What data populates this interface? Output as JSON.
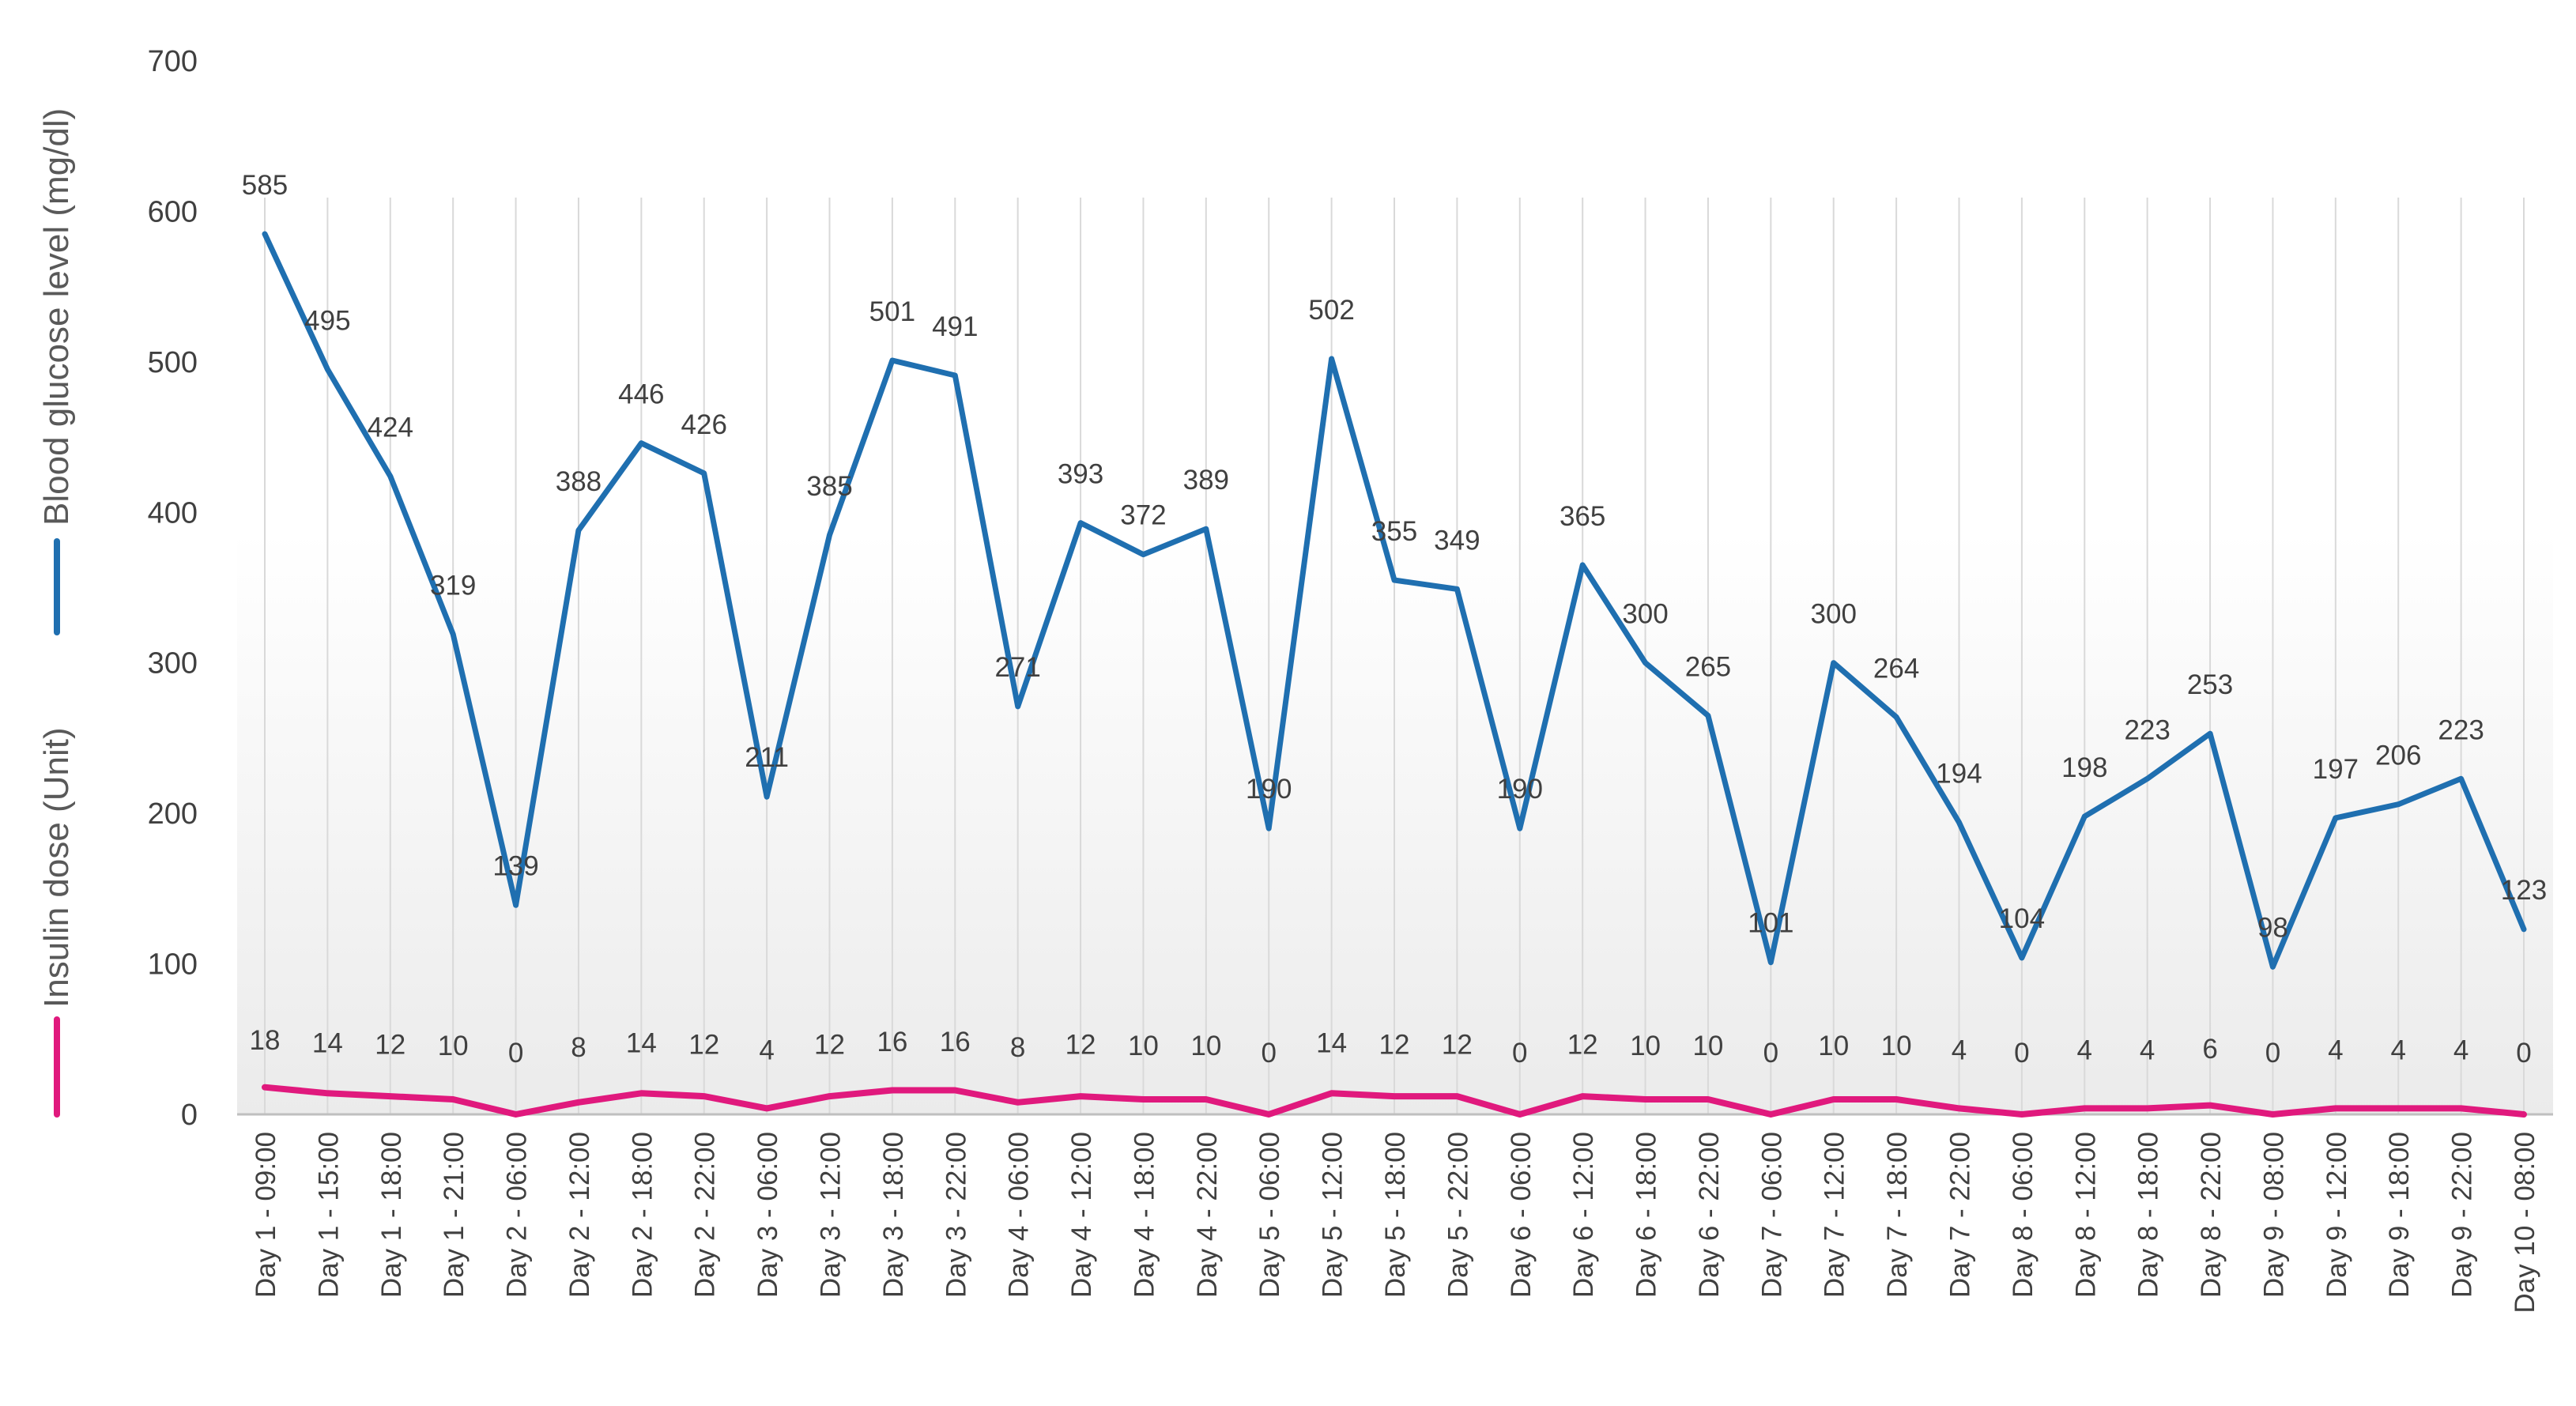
{
  "chart_data": {
    "type": "line",
    "title": "",
    "xlabel": "",
    "ylabel": "",
    "ylim": [
      0,
      700
    ],
    "yticks": [
      0,
      100,
      200,
      300,
      400,
      500,
      600,
      700
    ],
    "grid": "vertical",
    "legend_position": "left-vertical",
    "categories": [
      "Day 1 - 09:00",
      "Day 1 - 15:00",
      "Day 1 - 18:00",
      "Day 1 - 21:00",
      "Day 2 - 06:00",
      "Day 2 - 12:00",
      "Day 2 - 18:00",
      "Day 2 - 22:00",
      "Day 3 - 06:00",
      "Day 3 - 12:00",
      "Day 3 - 18:00",
      "Day 3 - 22:00",
      "Day 4 - 06:00",
      "Day 4 - 12:00",
      "Day 4 - 18:00",
      "Day 4 - 22:00",
      "Day 5 - 06:00",
      "Day 5 - 12:00",
      "Day 5 - 18:00",
      "Day 5 - 22:00",
      "Day 6 - 06:00",
      "Day 6 - 12:00",
      "Day 6 - 18:00",
      "Day 6 - 22:00",
      "Day 7 - 06:00",
      "Day 7 - 12:00",
      "Day 7 - 18:00",
      "Day 7 - 22:00",
      "Day 8 - 06:00",
      "Day 8 - 12:00",
      "Day 8 - 18:00",
      "Day 8 - 22:00",
      "Day 9 - 08:00",
      "Day 9 - 12:00",
      "Day 9 - 18:00",
      "Day 9 - 22:00",
      "Day 10 - 08:00"
    ],
    "series": [
      {
        "name": "Blood glucose level (mg/dl)",
        "color": "#1f6fb0",
        "values": [
          585,
          495,
          424,
          319,
          139,
          388,
          446,
          426,
          211,
          385,
          501,
          491,
          271,
          393,
          372,
          389,
          190,
          502,
          355,
          349,
          190,
          365,
          300,
          265,
          101,
          300,
          264,
          194,
          104,
          198,
          223,
          253,
          98,
          197,
          206,
          223,
          123
        ]
      },
      {
        "name": "Insulin dose (Unit)",
        "color": "#e0197d",
        "values": [
          18,
          14,
          12,
          10,
          0,
          8,
          14,
          12,
          4,
          12,
          16,
          16,
          8,
          12,
          10,
          10,
          0,
          14,
          12,
          12,
          0,
          12,
          10,
          10,
          0,
          10,
          10,
          4,
          0,
          4,
          4,
          6,
          0,
          4,
          4,
          4,
          0
        ]
      }
    ]
  }
}
